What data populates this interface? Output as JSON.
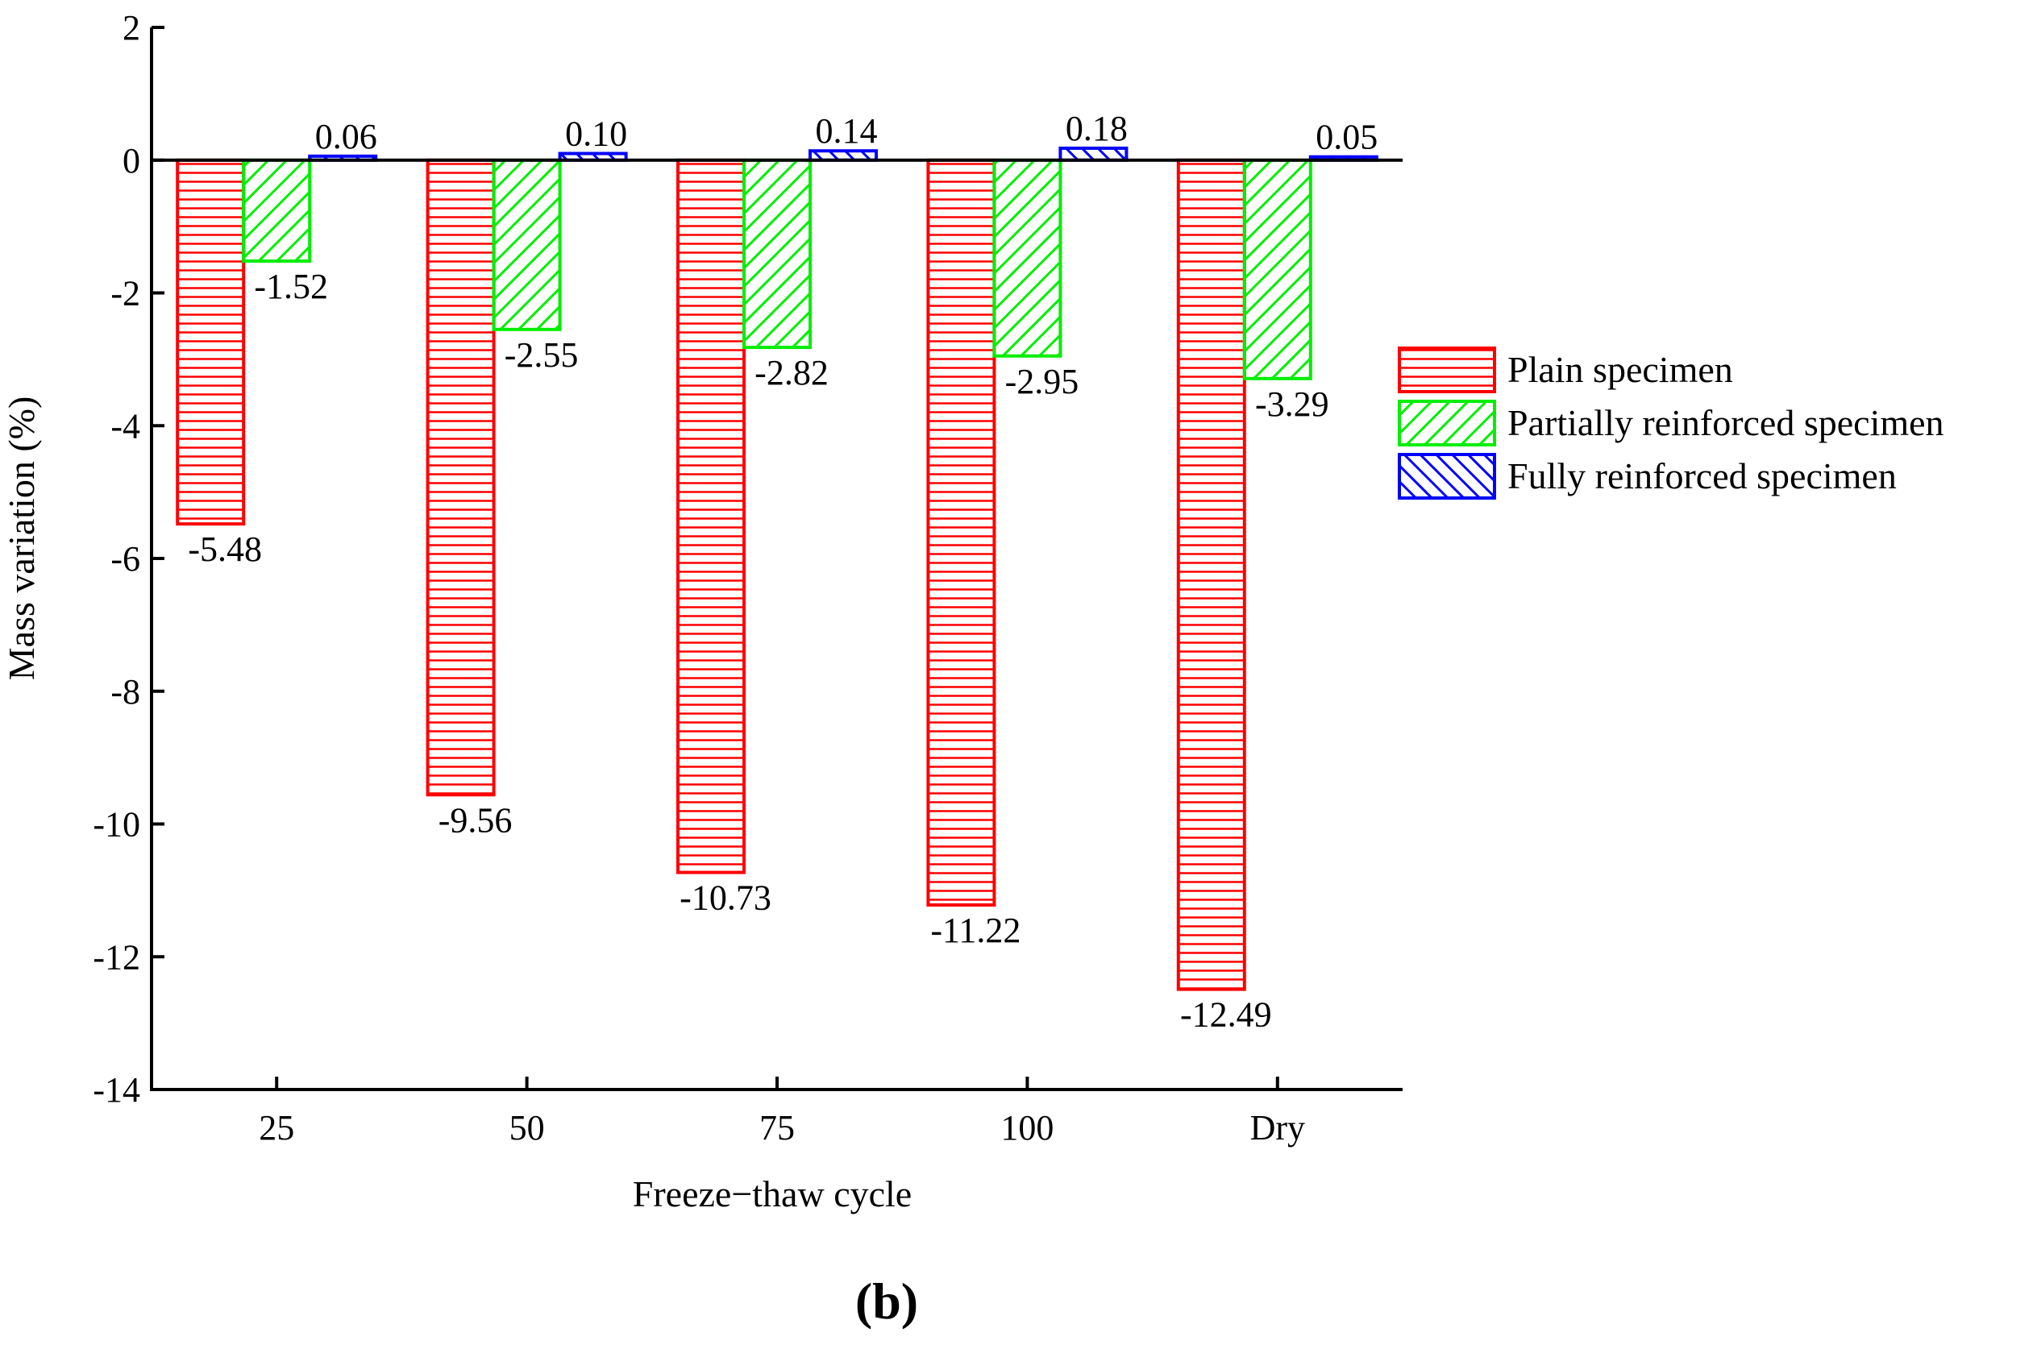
{
  "chart_data": {
    "type": "bar",
    "title": "",
    "xlabel": "Freeze−thaw cycle",
    "ylabel": "Mass variation (%)",
    "categories": [
      "25",
      "50",
      "75",
      "100",
      "Dry"
    ],
    "ylim": [
      -14,
      2
    ],
    "yticks": [
      2,
      0,
      -2,
      -4,
      -6,
      -8,
      -10,
      -12,
      -14
    ],
    "grid": false,
    "legend_position": "right",
    "series": [
      {
        "name": "Plain specimen",
        "color": "#ff0000",
        "pattern": "horizontal-lines",
        "values": [
          -5.48,
          -9.56,
          -10.73,
          -11.22,
          -12.49
        ],
        "labels": [
          "-5.48",
          "-9.56",
          "-10.73",
          "-11.22",
          "-12.49"
        ]
      },
      {
        "name": "Partially reinforced specimen",
        "color": "#00ee00",
        "pattern": "diagonal-lines",
        "values": [
          -1.52,
          -2.55,
          -2.82,
          -2.95,
          -3.29
        ],
        "labels": [
          "-1.52",
          "-2.55",
          "-2.82",
          "-2.95",
          "-3.29"
        ]
      },
      {
        "name": "Fully reinforced specimen",
        "color": "#0000ff",
        "pattern": "back-diagonal-lines",
        "values": [
          0.06,
          0.1,
          0.14,
          0.18,
          0.05
        ],
        "labels": [
          "0.06",
          "0.10",
          "0.14",
          "0.18",
          "0.05"
        ]
      }
    ]
  },
  "figure": {
    "panel_label": "(b)"
  }
}
